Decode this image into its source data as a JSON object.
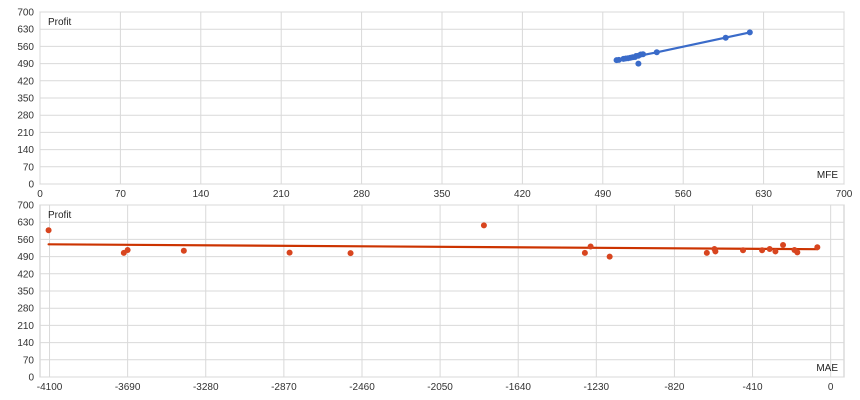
{
  "chart_data": [
    {
      "type": "scatter",
      "ylabel": "Profit",
      "xlabel": "MFE",
      "xlim": [
        0,
        700
      ],
      "ylim": [
        0,
        700
      ],
      "x_ticks": [
        0,
        70,
        140,
        210,
        280,
        350,
        420,
        490,
        560,
        630,
        700
      ],
      "y_ticks": [
        0,
        70,
        140,
        210,
        280,
        350,
        420,
        490,
        560,
        630,
        700
      ],
      "grid": true,
      "colors": {
        "points": "#3a6bc9",
        "trend": "#3a6bc9",
        "grid": "#d9d9d9"
      },
      "series": [
        {
          "values": [
            [
              502,
              504
            ],
            [
              504,
              505
            ],
            [
              508,
              509
            ],
            [
              510,
              511
            ],
            [
              512,
              512
            ],
            [
              514,
              514
            ],
            [
              516,
              516
            ],
            [
              518,
              517
            ],
            [
              519,
              521
            ],
            [
              521,
              522
            ],
            [
              523,
              527
            ],
            [
              525,
              528
            ],
            [
              537,
              536
            ],
            [
              521,
              490
            ],
            [
              597,
              595
            ],
            [
              618,
              617
            ]
          ]
        }
      ],
      "trendline": [
        [
          502,
          504
        ],
        [
          537,
          536
        ],
        [
          618,
          617
        ]
      ]
    },
    {
      "type": "scatter",
      "ylabel": "Profit",
      "xlabel": "MAE",
      "xlim": [
        -4150,
        70
      ],
      "ylim": [
        0,
        700
      ],
      "x_ticks": [
        -4100,
        -3690,
        -3280,
        -2870,
        -2460,
        -2050,
        -1640,
        -1230,
        -820,
        -410,
        0
      ],
      "y_ticks": [
        0,
        70,
        140,
        210,
        280,
        350,
        420,
        490,
        560,
        630,
        700
      ],
      "grid": true,
      "colors": {
        "points": "#d8451f",
        "trend": "#cc3300",
        "grid": "#d9d9d9"
      },
      "series": [
        {
          "values": [
            [
              -4105,
              597
            ],
            [
              -3710,
              505
            ],
            [
              -3690,
              517
            ],
            [
              -3395,
              514
            ],
            [
              -2840,
              506
            ],
            [
              -2520,
              504
            ],
            [
              -1820,
              617
            ],
            [
              -1290,
              505
            ],
            [
              -1260,
              531
            ],
            [
              -1160,
              490
            ],
            [
              -650,
              505
            ],
            [
              -610,
              521
            ],
            [
              -605,
              511
            ],
            [
              -460,
              516
            ],
            [
              -360,
              516
            ],
            [
              -320,
              521
            ],
            [
              -290,
              511
            ],
            [
              -250,
              537
            ],
            [
              -190,
              517
            ],
            [
              -175,
              507
            ],
            [
              -70,
              528
            ]
          ]
        }
      ],
      "trendline": [
        [
          -4105,
          540
        ],
        [
          -70,
          520
        ]
      ]
    }
  ]
}
